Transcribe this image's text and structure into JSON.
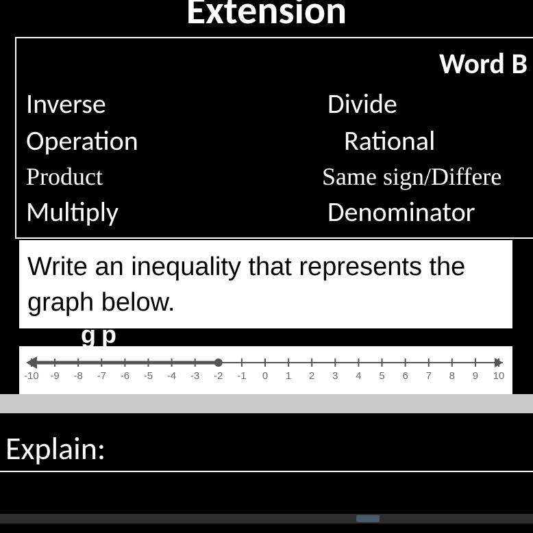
{
  "title": "Extension",
  "box": {
    "header": "Word B",
    "rows": [
      {
        "left": "Inverse",
        "right": "Divide",
        "serif": false,
        "rightIndent": 0
      },
      {
        "left": "Operation",
        "right": "Rational",
        "serif": false,
        "rightIndent": 24
      },
      {
        "left": "Product",
        "right": "Same sign/Differe",
        "serif": true,
        "rightIndent": -8
      },
      {
        "left": "Multiply",
        "right": "Denominator",
        "serif": false,
        "rightIndent": 0
      }
    ]
  },
  "prompt": "Write an inequality that represents the graph below.",
  "stray": "g p",
  "numberline": {
    "min": -10,
    "max": 10,
    "tickStep": 1,
    "filledPoint": -2,
    "rayDirection": "left",
    "lineColor": "#555555",
    "pointColor": "#555555",
    "labelColor": "#6a6a6a",
    "background": "#ffffff"
  },
  "explainLabel": "Explain:",
  "colors": {
    "pageBackground": "#000000",
    "text": "#ffffff",
    "promptBackground": "#ffffff",
    "promptText": "#000000",
    "grayBand": "#c9c9c9",
    "bottomBar": "#2f2f2f",
    "bottomAccent": "#4a5b6b"
  }
}
